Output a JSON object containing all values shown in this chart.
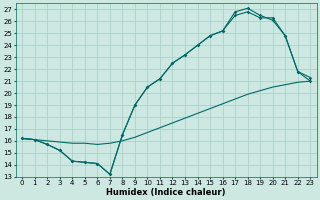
{
  "xlabel": "Humidex (Indice chaleur)",
  "background_color": "#cce8e0",
  "grid_color": "#a8ccc8",
  "line_color": "#006868",
  "xlim": [
    -0.5,
    23.5
  ],
  "ylim": [
    13,
    27.5
  ],
  "xticks": [
    0,
    1,
    2,
    3,
    4,
    5,
    6,
    7,
    8,
    9,
    10,
    11,
    12,
    13,
    14,
    15,
    16,
    17,
    18,
    19,
    20,
    21,
    22,
    23
  ],
  "yticks": [
    13,
    14,
    15,
    16,
    17,
    18,
    19,
    20,
    21,
    22,
    23,
    24,
    25,
    26,
    27
  ],
  "series1_x": [
    0,
    1,
    2,
    3,
    4,
    5,
    6,
    7,
    8,
    9,
    10,
    11,
    12,
    13,
    14,
    15,
    16,
    17,
    18,
    19,
    20,
    21,
    22,
    23
  ],
  "series1_y": [
    16.2,
    16.1,
    16.0,
    15.9,
    15.8,
    15.8,
    15.7,
    15.8,
    16.0,
    16.3,
    16.7,
    17.1,
    17.5,
    17.9,
    18.3,
    18.7,
    19.1,
    19.5,
    19.9,
    20.2,
    20.5,
    20.7,
    20.9,
    21.0
  ],
  "series2_x": [
    0,
    1,
    2,
    3,
    4,
    5,
    6,
    7,
    8,
    9,
    10,
    11,
    12,
    13,
    14,
    15,
    16,
    17,
    18,
    19,
    20,
    21,
    22,
    23
  ],
  "series2_y": [
    16.2,
    16.1,
    15.7,
    15.2,
    14.3,
    14.2,
    14.1,
    13.2,
    16.5,
    19.0,
    20.5,
    21.2,
    22.5,
    23.2,
    24.0,
    24.8,
    25.2,
    26.8,
    27.1,
    26.5,
    26.1,
    24.8,
    21.8,
    21.3
  ],
  "series3_x": [
    0,
    1,
    2,
    3,
    4,
    5,
    6,
    7,
    8,
    9,
    10,
    11,
    12,
    13,
    14,
    15,
    16,
    17,
    18,
    19,
    20,
    21,
    22,
    23
  ],
  "series3_y": [
    16.2,
    16.1,
    15.7,
    15.2,
    14.3,
    14.2,
    14.1,
    13.2,
    16.5,
    19.0,
    20.5,
    21.2,
    22.5,
    23.2,
    24.0,
    24.8,
    25.2,
    26.5,
    26.8,
    26.3,
    26.3,
    24.8,
    21.8,
    21.0
  ],
  "xlabel_fontsize": 6.0,
  "tick_fontsize": 5.0
}
